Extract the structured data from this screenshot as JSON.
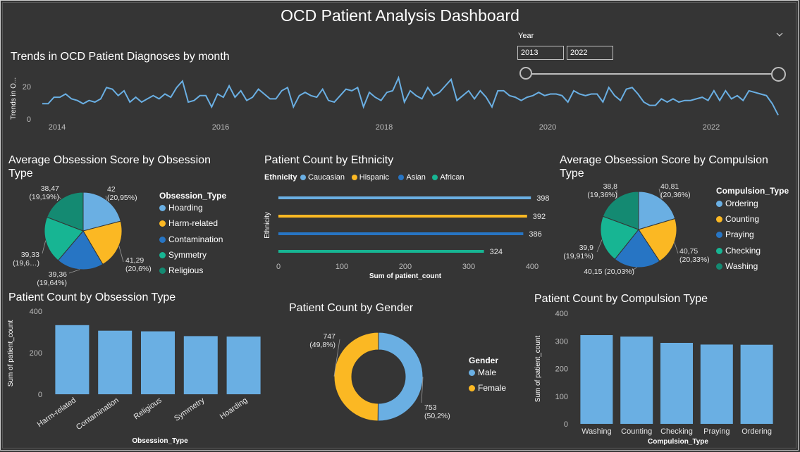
{
  "dashboard": {
    "title": "OCD Patient Analysis Dashboard"
  },
  "colors": {
    "blue": "#6aafe3",
    "yellow": "#fbb823",
    "darkblue": "#2775c4",
    "teal": "#17b593",
    "darkteal": "#148a72",
    "text_gray": "#bdbdbd",
    "line": "#6aafe3"
  },
  "year_slicer": {
    "label": "Year",
    "from": "2013",
    "to": "2022",
    "chevron": "chevron-down-icon"
  },
  "trend": {
    "title": "Trends in OCD Patient Diagnoses by month",
    "ylabel": "Trends in O...",
    "y_ticks": [
      "20",
      "0"
    ],
    "x_ticks": [
      "2014",
      "2016",
      "2018",
      "2020",
      "2022"
    ]
  },
  "obs_pie": {
    "title_line1": "Average Obsession Score by Obsession",
    "title_line2": "Type",
    "legend_title": "Obsession_Type",
    "slices": [
      {
        "name": "Hoarding",
        "value": 42,
        "label1": "42",
        "label2": "(20,95%)",
        "color": "#6aafe3"
      },
      {
        "name": "Harm-related",
        "value": 41.29,
        "label1": "41,29",
        "label2": "(20,6%)",
        "color": "#fbb823"
      },
      {
        "name": "Contamination",
        "value": 39.36,
        "label1": "39,36",
        "label2": "(19,64%)",
        "color": "#2775c4"
      },
      {
        "name": "Symmetry",
        "value": 39.33,
        "label1": "39,33",
        "label2": "(19,6…)",
        "color": "#17b593"
      },
      {
        "name": "Religious",
        "value": 38.47,
        "label1": "38,47",
        "label2": "(19,19%)",
        "color": "#148a72"
      }
    ]
  },
  "ethnicity": {
    "title": "Patient Count by Ethnicity",
    "legend_label": "Ethnicity",
    "ylabel": "Ethnicity",
    "xlabel": "Sum of patient_count",
    "x_ticks": [
      "0",
      "100",
      "200",
      "300",
      "400"
    ],
    "items": [
      {
        "name": "Caucasian",
        "value": 398,
        "label": "398",
        "color": "#6aafe3"
      },
      {
        "name": "Hispanic",
        "value": 392,
        "label": "392",
        "color": "#fbb823"
      },
      {
        "name": "Asian",
        "value": 386,
        "label": "386",
        "color": "#2775c4"
      },
      {
        "name": "African",
        "value": 324,
        "label": "324",
        "color": "#17b593"
      }
    ]
  },
  "comp_pie": {
    "title_line1": "Average Obsession Score by Compulsion",
    "title_line2": "Type",
    "legend_title": "Compulsion_Type",
    "slices": [
      {
        "name": "Ordering",
        "value": 40.81,
        "label1": "40,81",
        "label2": "(20,36%)",
        "color": "#6aafe3"
      },
      {
        "name": "Counting",
        "value": 40.75,
        "label1": "40,75",
        "label2": "(20,33%)",
        "color": "#fbb823"
      },
      {
        "name": "Praying",
        "value": 40.15,
        "label1": "40,15 (20,03%)",
        "label2": "",
        "color": "#2775c4"
      },
      {
        "name": "Checking",
        "value": 39.9,
        "label1": "39,9",
        "label2": "(19,91%)",
        "color": "#17b593"
      },
      {
        "name": "Washing",
        "value": 38.8,
        "label1": "38,8",
        "label2": "(19,36%)",
        "color": "#148a72"
      }
    ]
  },
  "obs_bar": {
    "title": "Patient Count by Obsession Type",
    "ylabel": "Sum of patient_count",
    "xlabel": "Obsession_Type",
    "y_ticks": [
      "400",
      "200",
      "0"
    ],
    "categories": [
      "Harm-related",
      "Contamination",
      "Religious",
      "Symmetry",
      "Hoarding"
    ],
    "values": [
      333,
      306,
      303,
      280,
      278
    ]
  },
  "gender": {
    "title": "Patient Count by Gender",
    "legend_title": "Gender",
    "slices": [
      {
        "name": "Male",
        "value": 753,
        "label1": "753",
        "label2": "(50,2%)",
        "color": "#6aafe3"
      },
      {
        "name": "Female",
        "value": 747,
        "label1": "747",
        "label2": "(49,8%)",
        "color": "#fbb823"
      }
    ]
  },
  "comp_bar": {
    "title": "Patient Count by Compulsion Type",
    "ylabel": "Sum of patient_count",
    "xlabel": "Compulsion_Type",
    "y_ticks": [
      "400",
      "300",
      "200",
      "100",
      "0"
    ],
    "categories": [
      "Washing",
      "Counting",
      "Checking",
      "Praying",
      "Ordering"
    ],
    "values": [
      321,
      316,
      293,
      287,
      286
    ]
  },
  "chart_data": [
    {
      "type": "line",
      "title": "Trends in OCD Patient Diagnoses by month",
      "ylabel": "Trends in O...",
      "x_start": "2013-10",
      "x_end": "2022-12",
      "ylim": [
        0,
        25
      ],
      "series": [
        {
          "values": [
            9,
            9,
            13,
            13,
            15,
            12,
            11,
            9,
            11,
            10,
            12,
            19,
            18,
            14,
            17,
            10,
            13,
            10,
            12,
            14,
            12,
            15,
            13,
            19,
            23,
            10,
            11,
            14,
            14,
            7,
            15,
            13,
            20,
            13,
            17,
            11,
            13,
            18,
            15,
            12,
            12,
            17,
            19,
            7,
            14,
            16,
            14,
            13,
            18,
            11,
            10,
            14,
            18,
            17,
            19,
            7,
            16,
            13,
            11,
            16,
            17,
            25,
            10,
            17,
            14,
            12,
            19,
            14,
            16,
            20,
            24,
            11,
            14,
            17,
            12,
            17,
            13,
            7,
            17,
            17,
            14,
            13,
            11,
            13,
            14,
            16,
            14,
            15,
            15,
            14,
            10,
            17,
            15,
            14,
            15,
            15,
            10,
            19,
            14,
            11,
            18,
            19,
            15,
            10,
            8,
            8,
            12,
            10,
            12,
            10,
            11,
            11,
            12,
            13,
            11,
            17,
            11,
            17,
            12,
            14,
            11,
            17,
            16,
            15,
            14,
            9,
            2
          ]
        }
      ]
    },
    {
      "type": "pie",
      "title": "Average Obsession Score by Obsession Type",
      "categories": [
        "Hoarding",
        "Harm-related",
        "Contamination",
        "Symmetry",
        "Religious"
      ],
      "values": [
        42,
        41.29,
        39.36,
        39.33,
        38.47
      ]
    },
    {
      "type": "bar",
      "title": "Patient Count by Ethnicity",
      "orientation": "horizontal",
      "categories": [
        "Caucasian",
        "Hispanic",
        "Asian",
        "African"
      ],
      "values": [
        398,
        392,
        386,
        324
      ],
      "xlabel": "Sum of patient_count",
      "ylabel": "Ethnicity",
      "xlim": [
        0,
        400
      ]
    },
    {
      "type": "pie",
      "title": "Average Obsession Score by Compulsion Type",
      "categories": [
        "Ordering",
        "Counting",
        "Praying",
        "Checking",
        "Washing"
      ],
      "values": [
        40.81,
        40.75,
        40.15,
        39.9,
        38.8
      ]
    },
    {
      "type": "bar",
      "title": "Patient Count by Obsession Type",
      "categories": [
        "Harm-related",
        "Contamination",
        "Religious",
        "Symmetry",
        "Hoarding"
      ],
      "values": [
        333,
        306,
        303,
        280,
        278
      ],
      "xlabel": "Obsession_Type",
      "ylabel": "Sum of patient_count",
      "ylim": [
        0,
        400
      ]
    },
    {
      "type": "pie",
      "title": "Patient Count by Gender",
      "categories": [
        "Male",
        "Female"
      ],
      "values": [
        753,
        747
      ]
    },
    {
      "type": "bar",
      "title": "Patient Count by Compulsion Type",
      "categories": [
        "Washing",
        "Counting",
        "Checking",
        "Praying",
        "Ordering"
      ],
      "values": [
        321,
        316,
        293,
        287,
        286
      ],
      "xlabel": "Compulsion_Type",
      "ylabel": "Sum of patient_count",
      "ylim": [
        0,
        400
      ]
    }
  ]
}
